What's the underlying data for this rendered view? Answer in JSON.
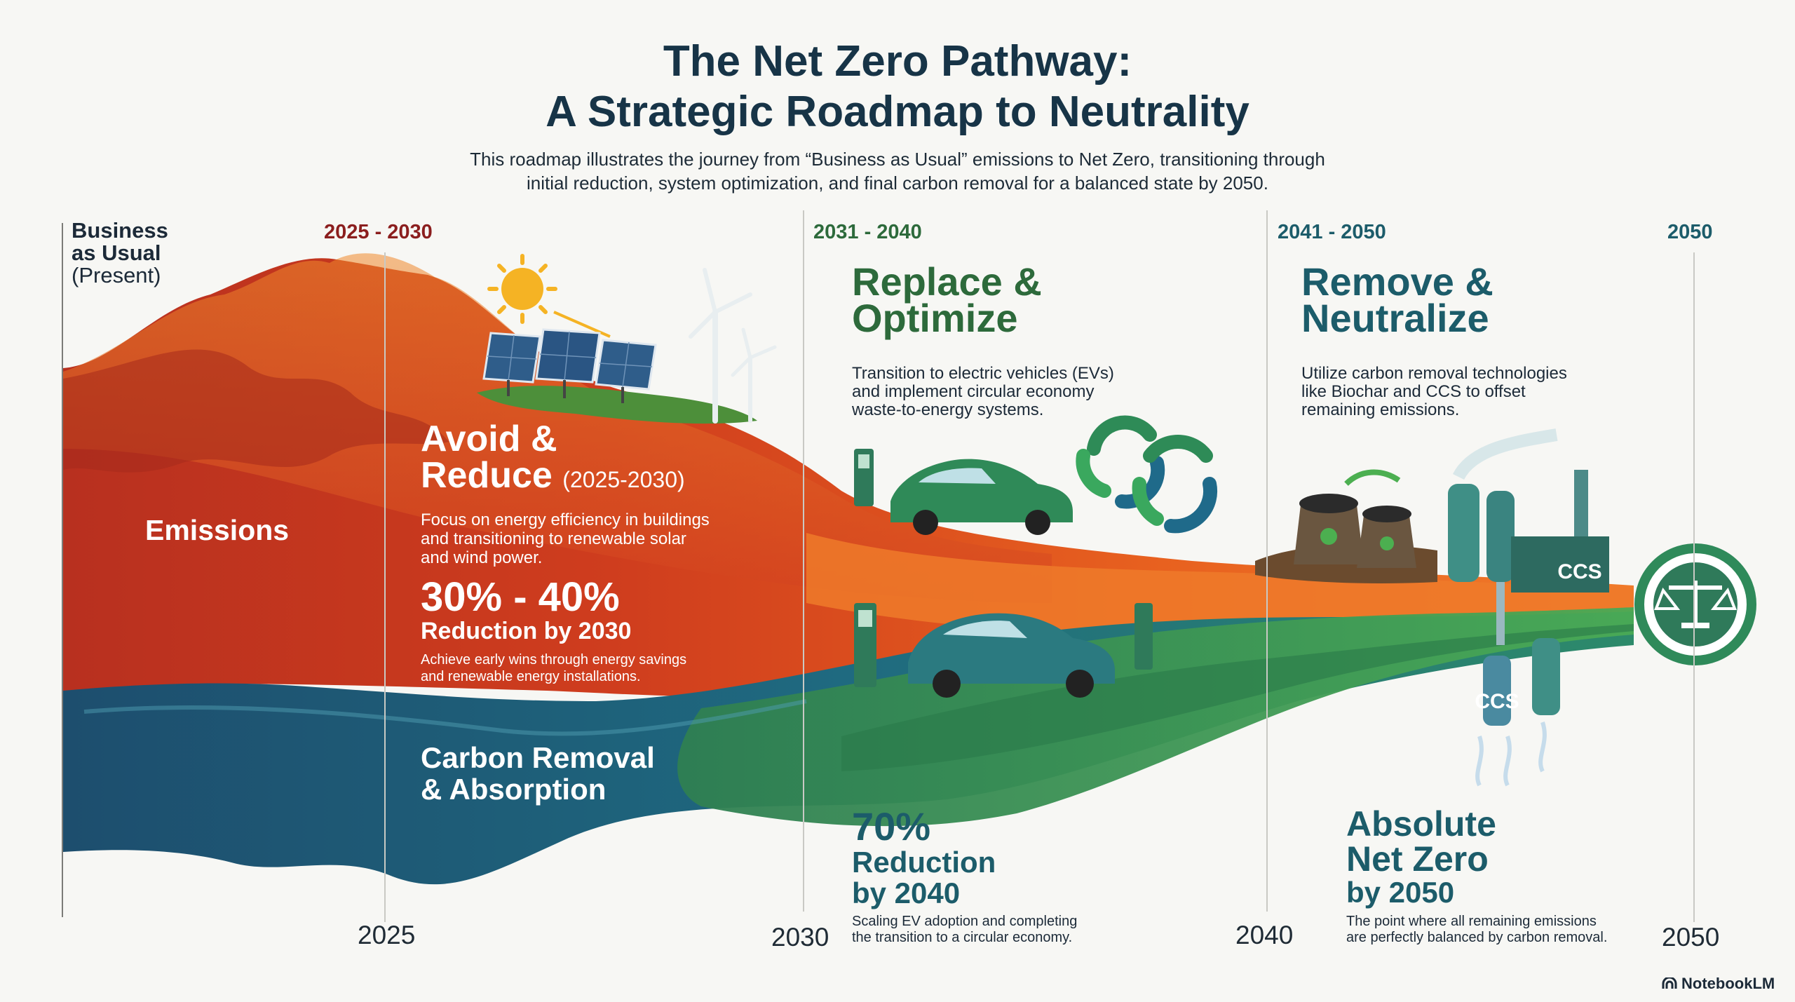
{
  "title": {
    "line1": "The Net Zero Pathway:",
    "line2": "A Strategic Roadmap to Neutrality"
  },
  "subtitle": {
    "line1": "This roadmap illustrates the journey from “Business as Usual” emissions to Net Zero, transitioning through",
    "line2": "initial reduction, system optimization, and final carbon removal for a balanced state by 2050."
  },
  "bau": {
    "line1": "Business",
    "line2": "as Usual",
    "line3": "(Present)"
  },
  "periods": {
    "p1": "2025 - 2030",
    "p2": "2031 - 2040",
    "p3": "2041 - 2050",
    "p4": "2050"
  },
  "bands": {
    "emissions": "Emissions",
    "removal_line1": "Carbon Removal",
    "removal_line2": "& Absorption"
  },
  "phase1": {
    "head1": "Avoid &",
    "head2": "Reduce",
    "years": "(2025-2030)",
    "body1": "Focus on energy efficiency in buildings",
    "body2": "and transitioning to renewable solar",
    "body3": "and wind power.",
    "stat": "30% - 40%",
    "stat_label": "Reduction by 2030",
    "note1": "Achieve early wins through energy savings",
    "note2": "and renewable energy installations."
  },
  "phase2": {
    "head1": "Replace &",
    "head2": "Optimize",
    "body1": "Transition to electric vehicles (EVs)",
    "body2": "and implement circular economy",
    "body3": "waste-to-energy systems.",
    "stat": "70%",
    "stat_label1": "Reduction",
    "stat_label2": "by 2040",
    "note1": "Scaling EV adoption and completing",
    "note2": "the transition to a circular economy."
  },
  "phase3": {
    "head1": "Remove &",
    "head2": "Neutralize",
    "body1": "Utilize carbon removal technologies",
    "body2": "like Biochar and CCS to offset",
    "body3": "remaining emissions.",
    "stat1": "Absolute",
    "stat2": "Net Zero",
    "stat3": "by 2050",
    "note1": "The point where all remaining emissions",
    "note2": "are perfectly balanced by carbon removal."
  },
  "ccs_labels": {
    "top": "CCS",
    "bottom": "CCS"
  },
  "years": {
    "y1": "2025",
    "y2": "2030",
    "y3": "2040",
    "y4": "2050"
  },
  "branding": {
    "name": "NotebookLM"
  },
  "icons": [
    "sun-icon",
    "solar-panel-icon",
    "wind-turbine-icon",
    "ev-charger-icon",
    "electric-car-icon",
    "recycle-arrows-icon",
    "biochar-bags-icon",
    "ccs-plant-icon",
    "balance-scale-icon",
    "notebooklm-logo-icon"
  ],
  "colors": {
    "emissions_red": "#c1361f",
    "emissions_orange": "#ea6a21",
    "removal_blue": "#1f5d7a",
    "removal_green": "#3e9b54",
    "heading_green": "#2d6a3b",
    "heading_teal": "#1c5c6a",
    "period_red": "#8b1e1e"
  }
}
